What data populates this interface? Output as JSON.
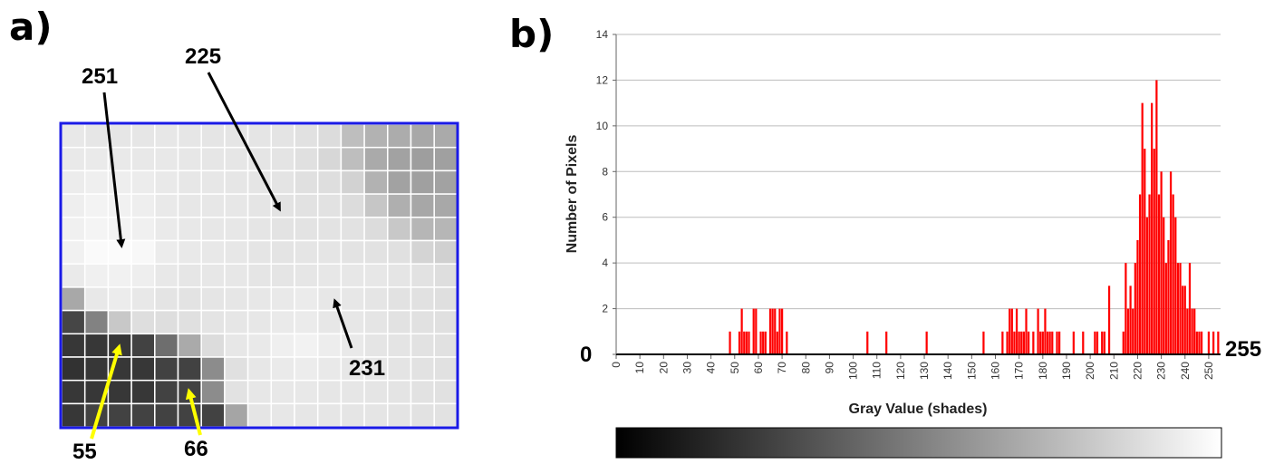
{
  "panel_a": {
    "label": "a)",
    "grid_values": [
      [
        232,
        230,
        230,
        230,
        231,
        230,
        229,
        229,
        229,
        228,
        225,
        220,
        190,
        178,
        172,
        168,
        170
      ],
      [
        233,
        234,
        233,
        232,
        232,
        231,
        230,
        230,
        229,
        228,
        224,
        215,
        190,
        170,
        162,
        158,
        160
      ],
      [
        236,
        239,
        238,
        236,
        233,
        231,
        231,
        230,
        229,
        228,
        224,
        222,
        210,
        178,
        162,
        160,
        162
      ],
      [
        238,
        243,
        241,
        238,
        233,
        231,
        231,
        231,
        229,
        227,
        226,
        226,
        220,
        198,
        175,
        167,
        168
      ],
      [
        240,
        244,
        243,
        240,
        234,
        232,
        231,
        231,
        229,
        227,
        227,
        227,
        226,
        220,
        200,
        182,
        182
      ],
      [
        241,
        250,
        251,
        248,
        236,
        233,
        232,
        231,
        229,
        228,
        229,
        229,
        227,
        226,
        224,
        212,
        208
      ],
      [
        234,
        240,
        241,
        238,
        232,
        230,
        231,
        231,
        229,
        229,
        230,
        231,
        231,
        231,
        229,
        226,
        222
      ],
      [
        168,
        232,
        236,
        232,
        228,
        227,
        229,
        230,
        231,
        233,
        235,
        231,
        231,
        229,
        226,
        225,
        223
      ],
      [
        70,
        130,
        200,
        222,
        222,
        224,
        228,
        230,
        231,
        234,
        235,
        231,
        231,
        229,
        226,
        225,
        224
      ],
      [
        55,
        55,
        55,
        66,
        110,
        170,
        220,
        231,
        233,
        239,
        242,
        237,
        233,
        229,
        228,
        226,
        225
      ],
      [
        50,
        55,
        55,
        55,
        66,
        66,
        140,
        224,
        231,
        234,
        236,
        233,
        231,
        230,
        228,
        226,
        225
      ],
      [
        55,
        55,
        55,
        55,
        66,
        66,
        140,
        226,
        231,
        232,
        232,
        230,
        230,
        229,
        228,
        226,
        225
      ],
      [
        55,
        66,
        66,
        66,
        66,
        66,
        66,
        165,
        229,
        231,
        230,
        230,
        229,
        229,
        228,
        226,
        226
      ]
    ],
    "callouts": [
      {
        "text": "251"
      },
      {
        "text": "225"
      },
      {
        "text": "231"
      },
      {
        "text": "55"
      },
      {
        "text": "66"
      }
    ],
    "callout_colors": {
      "black": "#000000",
      "yellow": "#ffff00"
    },
    "border_color": "#1a1ae6"
  },
  "panel_b": {
    "label": "b)",
    "start_label": "0",
    "end_label": "255",
    "bar_color": "#ff0000",
    "gradient": {
      "from": "#000000",
      "to": "#ffffff"
    }
  },
  "chart_data": {
    "type": "bar",
    "xlabel": "Gray Value (shades)",
    "ylabel": "Number of Pixels",
    "ylim": [
      0,
      14
    ],
    "xlim": [
      0,
      255
    ],
    "y_ticks": [
      "0",
      "2",
      "4",
      "6",
      "8",
      "10",
      "12",
      "14"
    ],
    "x_ticks": [
      "0",
      "10",
      "20",
      "30",
      "40",
      "50",
      "60",
      "70",
      "80",
      "90",
      "100",
      "110",
      "120",
      "130",
      "140",
      "150",
      "160",
      "170",
      "180",
      "190",
      "200",
      "210",
      "220",
      "230",
      "240",
      "250"
    ],
    "grid": "horizontal",
    "x": [
      48,
      52,
      53,
      54,
      55,
      56,
      58,
      59,
      61,
      62,
      63,
      65,
      66,
      67,
      68,
      69,
      70,
      72,
      106,
      114,
      131,
      155,
      163,
      165,
      166,
      167,
      168,
      169,
      170,
      171,
      172,
      173,
      174,
      176,
      178,
      179,
      180,
      181,
      182,
      183,
      184,
      186,
      187,
      193,
      197,
      202,
      203,
      205,
      206,
      208,
      214,
      215,
      216,
      217,
      218,
      219,
      220,
      221,
      222,
      223,
      224,
      225,
      226,
      227,
      228,
      229,
      230,
      231,
      232,
      233,
      234,
      235,
      236,
      237,
      238,
      239,
      240,
      241,
      242,
      243,
      244,
      245,
      246,
      247,
      250,
      252,
      254
    ],
    "values": [
      1,
      1,
      2,
      1,
      1,
      1,
      2,
      2,
      1,
      1,
      1,
      2,
      2,
      2,
      1,
      2,
      2,
      1,
      1,
      1,
      1,
      1,
      1,
      1,
      2,
      2,
      1,
      2,
      1,
      1,
      1,
      2,
      1,
      1,
      2,
      1,
      1,
      2,
      1,
      1,
      1,
      1,
      1,
      1,
      1,
      1,
      1,
      1,
      1,
      3,
      1,
      4,
      2,
      3,
      2,
      4,
      5,
      7,
      11,
      9,
      6,
      7,
      11,
      9,
      12,
      7,
      8,
      6,
      4,
      5,
      8,
      7,
      6,
      4,
      4,
      3,
      3,
      2,
      4,
      2,
      2,
      1,
      1,
      1,
      1,
      1,
      1
    ]
  }
}
